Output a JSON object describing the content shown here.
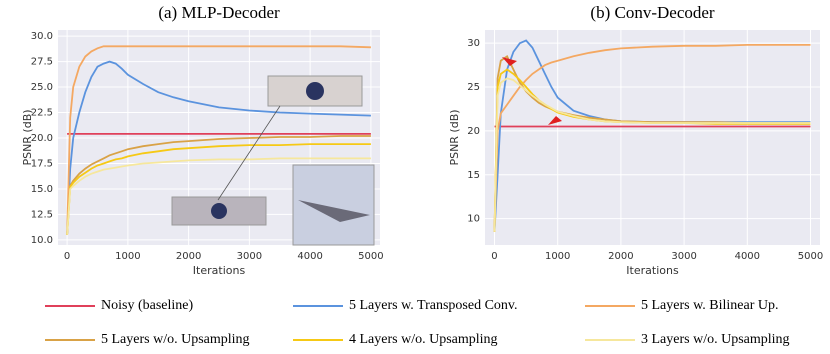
{
  "chart_data": [
    {
      "type": "line",
      "title": "(a) MLP-Decoder",
      "xlabel": "Iterations",
      "ylabel": "PSNR (dB)",
      "grid": true,
      "x": [
        0,
        50,
        100,
        200,
        300,
        400,
        500,
        600,
        700,
        800,
        900,
        1000,
        1250,
        1500,
        1750,
        2000,
        2500,
        3000,
        3500,
        4000,
        4500,
        5000
      ],
      "xlim": [
        -150,
        5150
      ],
      "xticks": [
        0,
        1000,
        2000,
        3000,
        4000,
        5000
      ],
      "ylim": [
        9.5,
        30.6
      ],
      "yticks": [
        {
          "value": 10,
          "label": "10.0"
        },
        {
          "value": 12.5,
          "label": "12.5"
        },
        {
          "value": 15,
          "label": "15.0"
        },
        {
          "value": 17.5,
          "label": "17.5"
        },
        {
          "value": 20,
          "label": "20.0"
        },
        {
          "value": 22.5,
          "label": "22.5"
        },
        {
          "value": 25,
          "label": "25.0"
        },
        {
          "value": 27.5,
          "label": "27.5"
        },
        {
          "value": 30,
          "label": "30.0"
        }
      ],
      "series": [
        {
          "name": "Noisy (baseline)",
          "color": "#e0405a",
          "values": [
            20.4,
            20.4,
            20.4,
            20.4,
            20.4,
            20.4,
            20.4,
            20.4,
            20.4,
            20.4,
            20.4,
            20.4,
            20.4,
            20.4,
            20.4,
            20.4,
            20.4,
            20.4,
            20.4,
            20.4,
            20.4,
            20.4
          ]
        },
        {
          "name": "5 Layers w. Transposed Conv.",
          "color": "#5b93de",
          "values": [
            10.5,
            17,
            20,
            22.5,
            24.5,
            26,
            27,
            27.3,
            27.5,
            27.3,
            26.8,
            26.2,
            25.3,
            24.5,
            24,
            23.6,
            23,
            22.7,
            22.5,
            22.4,
            22.3,
            22.2
          ]
        },
        {
          "name": "5 Layers w. Bilinear Up.",
          "color": "#f4a862",
          "values": [
            10.5,
            22,
            25,
            27,
            28,
            28.5,
            28.8,
            29,
            29,
            29,
            29,
            29,
            29,
            29,
            29,
            29,
            29,
            29,
            29,
            29,
            29,
            28.9
          ]
        },
        {
          "name": "5 Layers w/o. Upsampling",
          "color": "#d9a246",
          "values": [
            10.5,
            15.3,
            15.8,
            16.5,
            17,
            17.4,
            17.7,
            18,
            18.3,
            18.5,
            18.7,
            18.9,
            19.2,
            19.4,
            19.6,
            19.7,
            19.9,
            20,
            20.1,
            20.1,
            20.2,
            20.2
          ]
        },
        {
          "name": "4 Layers w/o. Upsampling",
          "color": "#f6c915",
          "values": [
            10.5,
            15.2,
            15.6,
            16.2,
            16.6,
            17,
            17.3,
            17.5,
            17.7,
            17.9,
            18,
            18.2,
            18.5,
            18.7,
            18.9,
            19,
            19.2,
            19.3,
            19.3,
            19.4,
            19.4,
            19.4
          ]
        },
        {
          "name": "3 Layers w/o. Upsampling",
          "color": "#f6e79c",
          "values": [
            10.5,
            15,
            15.3,
            15.8,
            16.2,
            16.5,
            16.7,
            16.9,
            17,
            17.1,
            17.2,
            17.3,
            17.5,
            17.6,
            17.7,
            17.8,
            17.9,
            17.9,
            18,
            18,
            18,
            18
          ]
        }
      ]
    },
    {
      "type": "line",
      "title": "(b) Conv-Decoder",
      "xlabel": "Iterations",
      "ylabel": "PSNR (dB)",
      "grid": true,
      "x": [
        0,
        50,
        100,
        200,
        300,
        400,
        500,
        600,
        700,
        800,
        900,
        1000,
        1250,
        1500,
        1750,
        2000,
        2500,
        3000,
        3500,
        4000,
        4500,
        5000
      ],
      "xlim": [
        -150,
        5150
      ],
      "xticks": [
        0,
        1000,
        2000,
        3000,
        4000,
        5000
      ],
      "ylim": [
        7,
        31.5
      ],
      "yticks": [
        10,
        15,
        20,
        25,
        30
      ],
      "series": [
        {
          "color": "#e0405a",
          "values": [
            20.5,
            20.5,
            20.5,
            20.5,
            20.5,
            20.5,
            20.5,
            20.5,
            20.5,
            20.5,
            20.5,
            20.5,
            20.5,
            20.5,
            20.5,
            20.5,
            20.5,
            20.5,
            20.5,
            20.5,
            20.5,
            20.5
          ]
        },
        {
          "color": "#5b93de",
          "values": [
            8.5,
            15,
            22,
            27,
            29,
            30,
            30.3,
            29.5,
            28,
            26.5,
            25,
            23.8,
            22.3,
            21.7,
            21.3,
            21.1,
            21,
            21,
            21,
            21,
            21,
            21
          ]
        },
        {
          "color": "#f4a862",
          "values": [
            8.5,
            20,
            22,
            23,
            24,
            25,
            25.8,
            26.5,
            27,
            27.5,
            27.8,
            28,
            28.5,
            28.9,
            29.2,
            29.4,
            29.6,
            29.7,
            29.7,
            29.8,
            29.8,
            29.8
          ]
        },
        {
          "color": "#d9a246",
          "values": [
            8.5,
            26,
            28,
            28.5,
            27,
            25.5,
            24.5,
            23.8,
            23.2,
            22.8,
            22.5,
            22.2,
            21.8,
            21.5,
            21.3,
            21.1,
            21,
            21,
            21,
            20.9,
            20.9,
            20.9
          ]
        },
        {
          "color": "#f6c915",
          "values": [
            8.5,
            25,
            26.5,
            27,
            26.5,
            25.8,
            25,
            24.2,
            23.5,
            23,
            22.5,
            22.1,
            21.6,
            21.3,
            21.1,
            21,
            20.9,
            20.9,
            20.8,
            20.8,
            20.8,
            20.8
          ]
        },
        {
          "color": "#f6e79c",
          "values": [
            8.5,
            24,
            25.5,
            26,
            25.8,
            25.2,
            24.6,
            24,
            23.5,
            23,
            22.6,
            22.2,
            21.7,
            21.3,
            21.1,
            21,
            20.9,
            20.9,
            20.9,
            20.9,
            20.9,
            20.9
          ]
        }
      ]
    }
  ]
}
